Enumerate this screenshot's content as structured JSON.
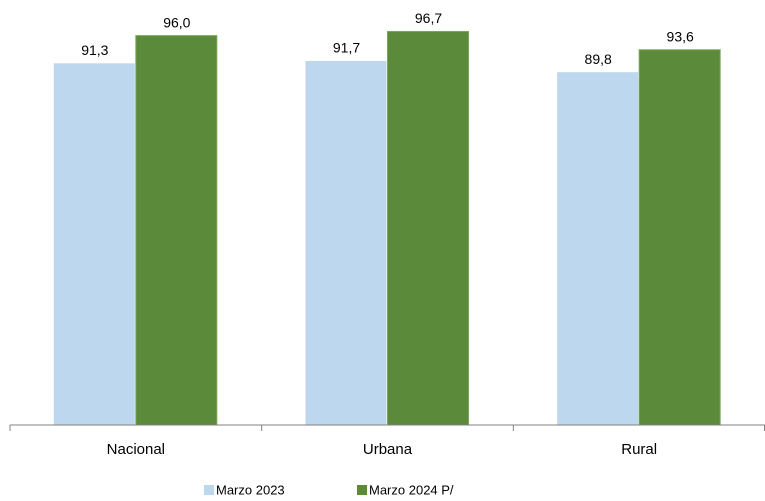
{
  "chart_data": {
    "type": "bar",
    "categories": [
      "Nacional",
      "Urbana",
      "Rural"
    ],
    "series": [
      {
        "name": "Marzo 2023",
        "color": "#bdd7ee",
        "values": [
          91.3,
          91.7,
          89.8
        ],
        "value_labels": [
          "91,3",
          "91,7",
          "89,8"
        ]
      },
      {
        "name": "Marzo 2024 P/",
        "color": "#5b8a3a",
        "values": [
          96.0,
          96.7,
          93.6
        ],
        "value_labels": [
          "96,0",
          "96,7",
          "93,6"
        ]
      }
    ],
    "ylim": [
      30,
      100
    ],
    "legend": "bottom"
  }
}
